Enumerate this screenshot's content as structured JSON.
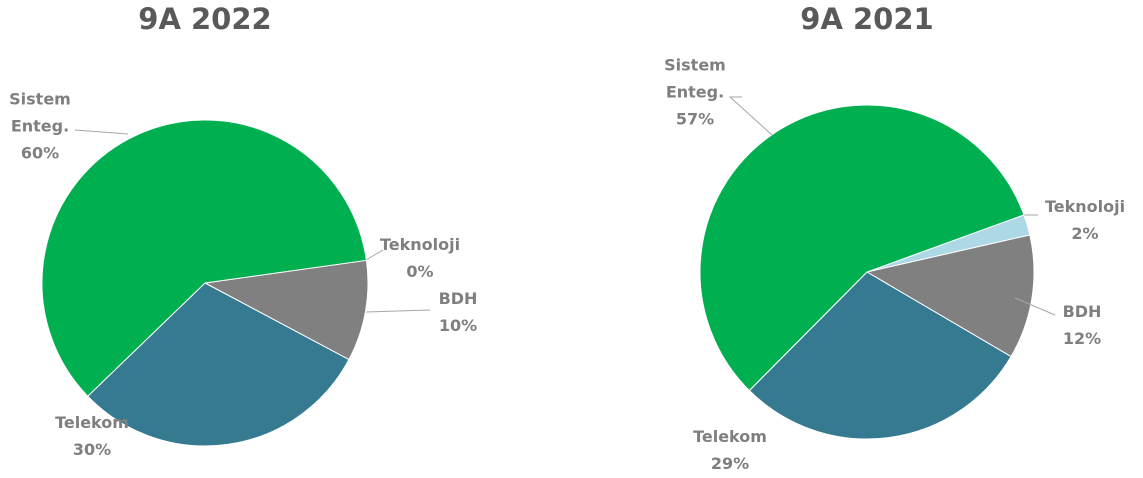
{
  "chart_data": [
    {
      "type": "pie",
      "title": "9A 2022",
      "categories": [
        "Teknoloji",
        "BDH",
        "Telekom",
        "Sistem Enteg."
      ],
      "values": [
        0,
        10,
        30,
        60
      ],
      "value_labels": [
        "0%",
        "10%",
        "30%",
        "60%"
      ],
      "colors": [
        "#add8e6",
        "#808080",
        "#357a91",
        "#00b050"
      ]
    },
    {
      "type": "pie",
      "title": "9A 2021",
      "categories": [
        "Teknoloji",
        "BDH",
        "Telekom",
        "Sistem Enteg."
      ],
      "values": [
        2,
        12,
        29,
        57
      ],
      "value_labels": [
        "2%",
        "12%",
        "29%",
        "57%"
      ],
      "colors": [
        "#add8e6",
        "#808080",
        "#357a91",
        "#00b050"
      ]
    }
  ]
}
